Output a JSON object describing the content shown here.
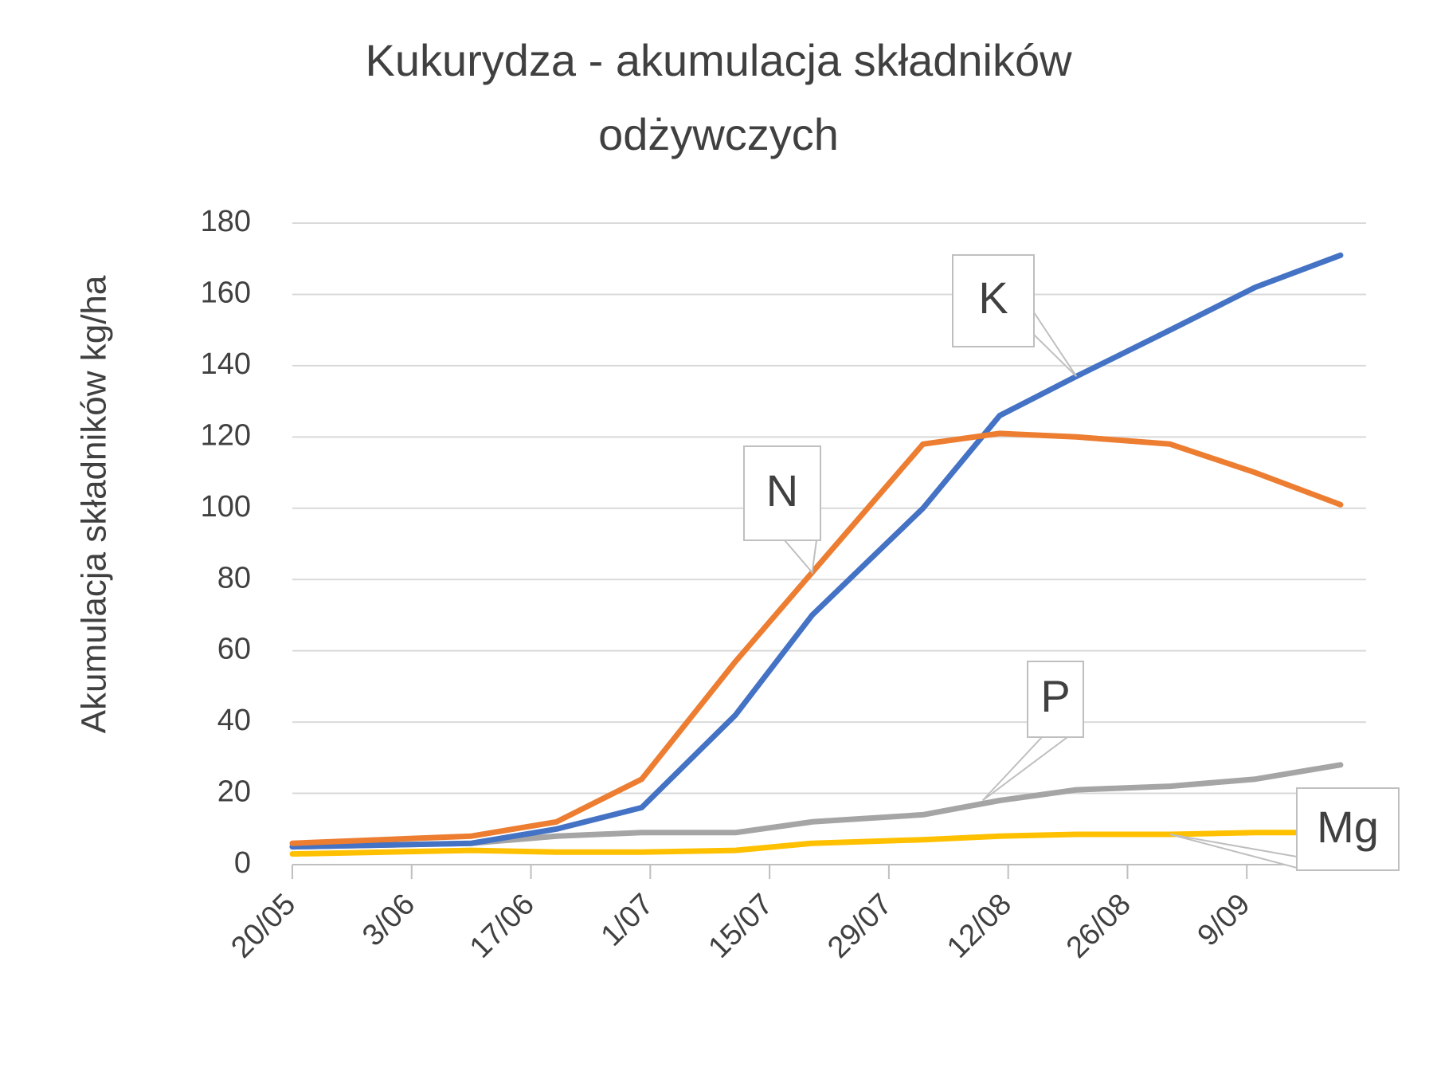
{
  "chart_data": {
    "type": "line",
    "title_lines": [
      "Kukurydza - akumulacja składników",
      "odżywczych"
    ],
    "ylabel": "Akumulacja składników kg/ha",
    "xlabel": "",
    "ylim": [
      0,
      180
    ],
    "yticks": [
      0,
      20,
      40,
      60,
      80,
      100,
      120,
      140,
      160,
      180
    ],
    "xlim": [
      "2020-05-20",
      "2020-09-23"
    ],
    "xticks": [
      {
        "date": "2020-05-20",
        "label": "20/05"
      },
      {
        "date": "2020-06-03",
        "label": "3/06"
      },
      {
        "date": "2020-06-17",
        "label": "17/06"
      },
      {
        "date": "2020-07-01",
        "label": "1/07"
      },
      {
        "date": "2020-07-15",
        "label": "15/07"
      },
      {
        "date": "2020-07-29",
        "label": "29/07"
      },
      {
        "date": "2020-08-12",
        "label": "12/08"
      },
      {
        "date": "2020-08-26",
        "label": "26/08"
      },
      {
        "date": "2020-09-09",
        "label": "9/09"
      }
    ],
    "grid": true,
    "legend": "none",
    "series": [
      {
        "name": "K",
        "color": "#4472C4",
        "points": [
          {
            "x": "2020-05-20",
            "y": 5
          },
          {
            "x": "2020-06-10",
            "y": 6
          },
          {
            "x": "2020-06-20",
            "y": 10
          },
          {
            "x": "2020-06-30",
            "y": 16
          },
          {
            "x": "2020-07-11",
            "y": 42
          },
          {
            "x": "2020-07-20",
            "y": 70
          },
          {
            "x": "2020-08-02",
            "y": 100
          },
          {
            "x": "2020-08-11",
            "y": 126
          },
          {
            "x": "2020-08-20",
            "y": 137
          },
          {
            "x": "2020-08-31",
            "y": 150
          },
          {
            "x": "2020-09-10",
            "y": 162
          },
          {
            "x": "2020-09-20",
            "y": 171
          }
        ]
      },
      {
        "name": "N",
        "color": "#ED7D31",
        "points": [
          {
            "x": "2020-05-20",
            "y": 6
          },
          {
            "x": "2020-06-10",
            "y": 8
          },
          {
            "x": "2020-06-20",
            "y": 12
          },
          {
            "x": "2020-06-30",
            "y": 24
          },
          {
            "x": "2020-07-11",
            "y": 57
          },
          {
            "x": "2020-07-20",
            "y": 82
          },
          {
            "x": "2020-08-02",
            "y": 118
          },
          {
            "x": "2020-08-11",
            "y": 121
          },
          {
            "x": "2020-08-20",
            "y": 120
          },
          {
            "x": "2020-08-31",
            "y": 118
          },
          {
            "x": "2020-09-10",
            "y": 110
          },
          {
            "x": "2020-09-20",
            "y": 101
          }
        ]
      },
      {
        "name": "P",
        "color": "#A5A5A5",
        "points": [
          {
            "x": "2020-05-20",
            "y": 5
          },
          {
            "x": "2020-06-10",
            "y": 6
          },
          {
            "x": "2020-06-20",
            "y": 8
          },
          {
            "x": "2020-06-30",
            "y": 9
          },
          {
            "x": "2020-07-11",
            "y": 9
          },
          {
            "x": "2020-07-20",
            "y": 12
          },
          {
            "x": "2020-08-02",
            "y": 14
          },
          {
            "x": "2020-08-11",
            "y": 18
          },
          {
            "x": "2020-08-20",
            "y": 21
          },
          {
            "x": "2020-08-31",
            "y": 22
          },
          {
            "x": "2020-09-10",
            "y": 24
          },
          {
            "x": "2020-09-20",
            "y": 28
          }
        ]
      },
      {
        "name": "Mg",
        "color": "#FFC000",
        "points": [
          {
            "x": "2020-05-20",
            "y": 3
          },
          {
            "x": "2020-06-10",
            "y": 4
          },
          {
            "x": "2020-06-20",
            "y": 3.5
          },
          {
            "x": "2020-06-30",
            "y": 3.5
          },
          {
            "x": "2020-07-11",
            "y": 4
          },
          {
            "x": "2020-07-20",
            "y": 6
          },
          {
            "x": "2020-08-02",
            "y": 7
          },
          {
            "x": "2020-08-11",
            "y": 8
          },
          {
            "x": "2020-08-20",
            "y": 8.5
          },
          {
            "x": "2020-08-31",
            "y": 8.5
          },
          {
            "x": "2020-09-10",
            "y": 9
          },
          {
            "x": "2020-09-20",
            "y": 9
          }
        ]
      }
    ],
    "annotations": [
      {
        "text": "K",
        "series": "K",
        "x": "2020-08-20",
        "y": 137
      },
      {
        "text": "N",
        "series": "N",
        "x": "2020-07-20",
        "y": 82
      },
      {
        "text": "P",
        "series": "P",
        "x": "2020-08-09",
        "y": 18
      },
      {
        "text": "Mg",
        "series": "Mg",
        "x": "2020-08-31",
        "y": 8.5
      }
    ]
  }
}
